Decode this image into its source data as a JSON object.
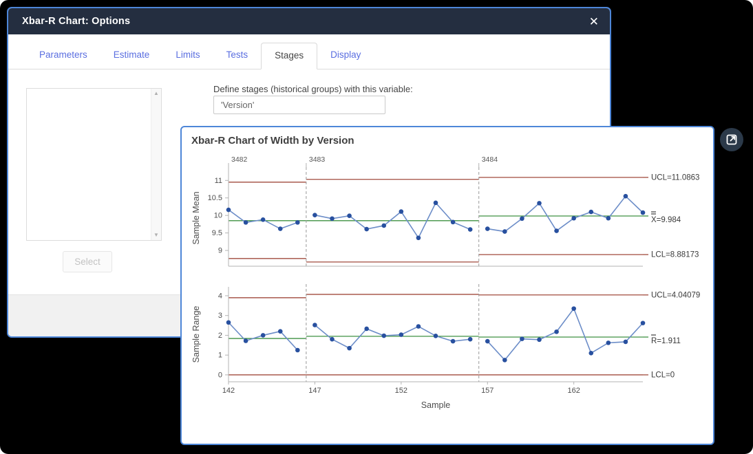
{
  "icons": {
    "close": "✕",
    "scroll_up": "▲",
    "scroll_down": "▼"
  },
  "colors": {
    "window_border": "#4d86d8",
    "titlebar_bg": "#242e40",
    "tab_inactive": "#5a6ee0",
    "limit_line": "#a04a3c",
    "center_line": "#3d9140",
    "data_line": "#6c8dc8",
    "marker": "#28509f",
    "stage_boundary": "#999999",
    "axis": "#b3b3b3"
  },
  "dialog": {
    "title": "Xbar-R Chart: Options",
    "tabs": [
      {
        "label": "Parameters",
        "active": false
      },
      {
        "label": "Estimate",
        "active": false
      },
      {
        "label": "Limits",
        "active": false
      },
      {
        "label": "Tests",
        "active": false
      },
      {
        "label": "Stages",
        "active": true
      },
      {
        "label": "Display",
        "active": false
      }
    ],
    "stages_tab": {
      "field_label": "Define stages (historical groups) with this variable:",
      "field_value": "'Version'",
      "select_button_label": "Select",
      "listbox_items": []
    }
  },
  "chart_data": {
    "type": "line",
    "subtype": "xbar-r-control-chart",
    "title": "Xbar-R Chart of Width by Version",
    "xlabel": "Sample",
    "x_domain": [
      142,
      166
    ],
    "x_ticks": [
      142,
      147,
      152,
      157,
      162
    ],
    "legend_position": "right",
    "grid": false,
    "stages": [
      {
        "label": "3482",
        "start": 142,
        "end": 146
      },
      {
        "label": "3483",
        "start": 147,
        "end": 156
      },
      {
        "label": "3484",
        "start": 157,
        "end": 166
      }
    ],
    "panels": [
      {
        "name": "xbar",
        "ylabel": "Sample Mean",
        "y_ticks": [
          9,
          9.5,
          10,
          10.5,
          11
        ],
        "ylim": [
          8.55,
          11.3
        ],
        "values": [
          10.16,
          9.8,
          9.88,
          9.62,
          9.8,
          10.01,
          9.91,
          9.99,
          9.61,
          9.71,
          10.11,
          9.36,
          10.36,
          9.81,
          9.6,
          9.62,
          9.54,
          9.91,
          10.35,
          9.56,
          9.92,
          10.1,
          9.92,
          10.55,
          10.08
        ],
        "stage_limits": [
          {
            "ucl": 10.95,
            "cl": 9.85,
            "lcl": 8.77
          },
          {
            "ucl": 11.03,
            "cl": 9.85,
            "lcl": 8.67
          },
          {
            "ucl": 11.0863,
            "cl": 9.984,
            "lcl": 8.88173
          }
        ],
        "cl_bars": 2,
        "right_labels": {
          "ucl": "UCL=11.0863",
          "cl": "X=9.984",
          "lcl": "LCL=8.88173"
        }
      },
      {
        "name": "range",
        "ylabel": "Sample Range",
        "y_ticks": [
          0,
          1,
          2,
          3,
          4
        ],
        "ylim": [
          -0.35,
          4.45
        ],
        "values": [
          2.65,
          1.72,
          2.0,
          2.2,
          1.25,
          2.52,
          1.8,
          1.35,
          2.33,
          1.98,
          2.03,
          2.45,
          1.97,
          1.7,
          1.8,
          1.7,
          0.75,
          1.82,
          1.78,
          2.18,
          3.35,
          1.1,
          1.62,
          1.67,
          2.62
        ],
        "stage_limits": [
          {
            "ucl": 3.9,
            "cl": 1.84,
            "lcl": 0
          },
          {
            "ucl": 4.07,
            "cl": 1.95,
            "lcl": 0
          },
          {
            "ucl": 4.04079,
            "cl": 1.911,
            "lcl": 0
          }
        ],
        "cl_bars": 1,
        "right_labels": {
          "ucl": "UCL=4.04079",
          "cl": "R=1.911",
          "lcl": "LCL=0"
        }
      }
    ]
  }
}
